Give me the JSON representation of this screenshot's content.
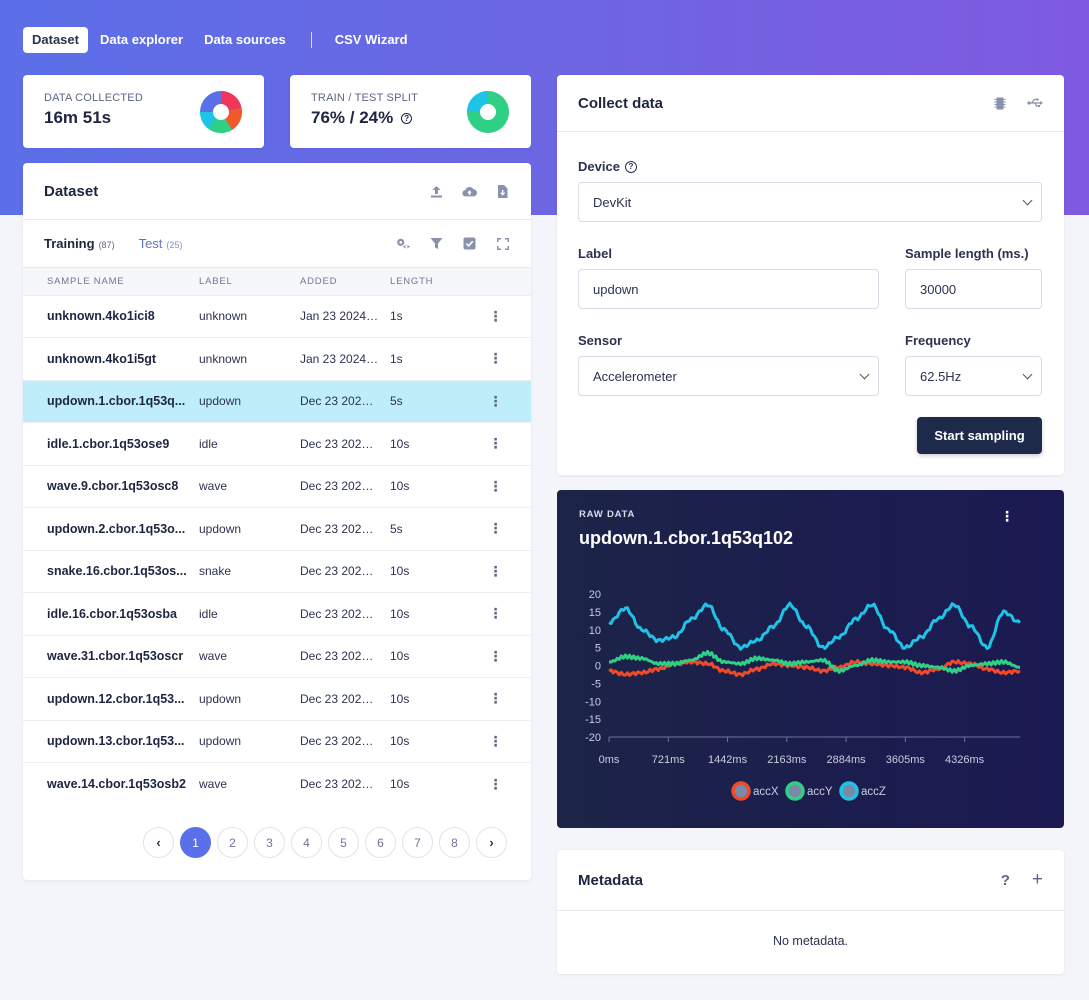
{
  "nav": {
    "tabs": [
      "Dataset",
      "Data explorer",
      "Data sources",
      "CSV Wizard"
    ],
    "active": 0
  },
  "stats": {
    "collected": {
      "label": "DATA COLLECTED",
      "value": "16m 51s"
    },
    "split": {
      "label": "TRAIN / TEST SPLIT",
      "value": "76% / 24%"
    }
  },
  "dataset": {
    "title": "Dataset",
    "training_label": "Training",
    "training_count": "(87)",
    "test_label": "Test",
    "test_count": "(25)",
    "columns": [
      "SAMPLE NAME",
      "LABEL",
      "ADDED",
      "LENGTH"
    ],
    "rows": [
      {
        "name": "unknown.4ko1ici8",
        "label": "unknown",
        "added": "Jan 23 2024, 1...",
        "length": "1s"
      },
      {
        "name": "unknown.4ko1i5gt",
        "label": "unknown",
        "added": "Jan 23 2024, 1...",
        "length": "1s"
      },
      {
        "name": "updown.1.cbor.1q53q...",
        "label": "updown",
        "added": "Dec 23 2020, 1...",
        "length": "5s"
      },
      {
        "name": "idle.1.cbor.1q53ose9",
        "label": "idle",
        "added": "Dec 23 2020, 1...",
        "length": "10s"
      },
      {
        "name": "wave.9.cbor.1q53osc8",
        "label": "wave",
        "added": "Dec 23 2020, 1...",
        "length": "10s"
      },
      {
        "name": "updown.2.cbor.1q53o...",
        "label": "updown",
        "added": "Dec 23 2020, 1...",
        "length": "5s"
      },
      {
        "name": "snake.16.cbor.1q53os...",
        "label": "snake",
        "added": "Dec 23 2020, 1...",
        "length": "10s"
      },
      {
        "name": "idle.16.cbor.1q53osba",
        "label": "idle",
        "added": "Dec 23 2020, 1...",
        "length": "10s"
      },
      {
        "name": "wave.31.cbor.1q53oscr",
        "label": "wave",
        "added": "Dec 23 2020, 1...",
        "length": "10s"
      },
      {
        "name": "updown.12.cbor.1q53...",
        "label": "updown",
        "added": "Dec 23 2020, 1...",
        "length": "10s"
      },
      {
        "name": "updown.13.cbor.1q53...",
        "label": "updown",
        "added": "Dec 23 2020, 1...",
        "length": "10s"
      },
      {
        "name": "wave.14.cbor.1q53osb2",
        "label": "wave",
        "added": "Dec 23 2020, 1...",
        "length": "10s"
      }
    ],
    "selected_row": 2,
    "pages": [
      "1",
      "2",
      "3",
      "4",
      "5",
      "6",
      "7",
      "8"
    ],
    "current_page": 0
  },
  "collect": {
    "title": "Collect data",
    "device_label": "Device",
    "device_value": "DevKit",
    "label_label": "Label",
    "label_value": "updown",
    "length_label": "Sample length (ms.)",
    "length_value": "30000",
    "sensor_label": "Sensor",
    "sensor_value": "Accelerometer",
    "freq_label": "Frequency",
    "freq_value": "62.5Hz",
    "start_button": "Start sampling"
  },
  "raw": {
    "caption": "RAW DATA",
    "title": "updown.1.cbor.1q53q102"
  },
  "chart_data": {
    "type": "line",
    "y_ticks": [
      "20",
      "15",
      "10",
      "5",
      "0",
      "-5",
      "-10",
      "-15",
      "-20"
    ],
    "x_ticks": [
      "0ms",
      "721ms",
      "1442ms",
      "2163ms",
      "2884ms",
      "3605ms",
      "4326ms"
    ],
    "ylim": [
      -20,
      20
    ],
    "xlim": [
      0,
      5000
    ],
    "x": [
      0,
      200,
      400,
      600,
      800,
      1000,
      1200,
      1400,
      1600,
      1800,
      2000,
      2200,
      2400,
      2600,
      2800,
      3000,
      3200,
      3400,
      3600,
      3800,
      4000,
      4200,
      4400,
      4600,
      4800,
      5000
    ],
    "series": [
      {
        "name": "accX",
        "color": "#f04a2a",
        "values": [
          -1.5,
          -2.5,
          -2,
          -1,
          0.5,
          1,
          0.5,
          -1.5,
          -2.5,
          -1,
          0.5,
          0,
          -0.5,
          -1.5,
          -0.5,
          1,
          0.5,
          0,
          -0.5,
          -2,
          -1,
          1,
          0.5,
          -1,
          -2,
          -1.5
        ]
      },
      {
        "name": "accY",
        "color": "#2fd085",
        "values": [
          1,
          2.5,
          2,
          0.5,
          0.5,
          1.5,
          3.5,
          1,
          0.5,
          2,
          1.5,
          0.5,
          1,
          1.5,
          -1.5,
          0,
          1.5,
          1,
          1,
          0,
          -0.5,
          -1.5,
          0,
          0.5,
          1,
          -0.5
        ]
      },
      {
        "name": "accZ",
        "color": "#1ec3e6",
        "values": [
          12,
          16,
          10,
          7,
          8,
          13,
          17,
          10,
          5,
          7,
          11,
          17,
          11,
          5,
          8,
          13,
          17,
          10,
          5,
          8,
          13,
          17,
          11,
          5,
          15,
          12
        ]
      }
    ]
  },
  "metadata": {
    "title": "Metadata",
    "empty": "No metadata."
  },
  "colors": {
    "accent": "#5b6fe8",
    "selected_row": "#bfeefa",
    "dark_button": "#1e2a4a"
  }
}
